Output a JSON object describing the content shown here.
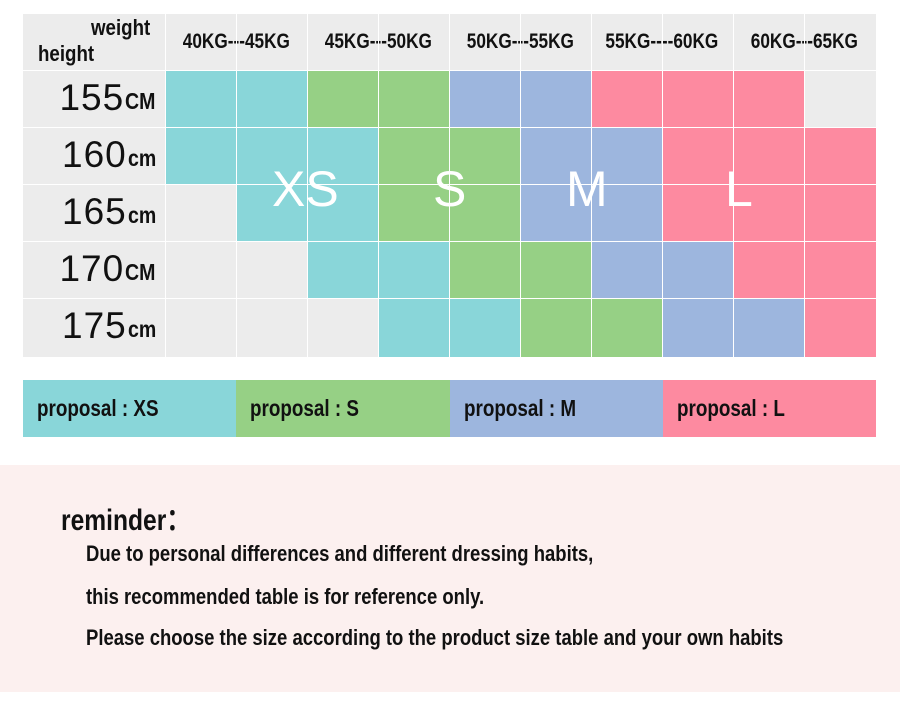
{
  "size_table": {
    "corner_weight": "weight",
    "corner_height": "height",
    "columns": [
      "40KG---45KG",
      "45KG---50KG",
      "50KG---55KG",
      "55KG----60KG",
      "60KG---65KG"
    ],
    "rows": [
      {
        "value": "155",
        "unit": "CM"
      },
      {
        "value": "160",
        "unit": "cm"
      },
      {
        "value": "165",
        "unit": "cm"
      },
      {
        "value": "170",
        "unit": "CM"
      },
      {
        "value": "175",
        "unit": "cm"
      }
    ],
    "size_labels": [
      "XS",
      "S",
      "M",
      "L"
    ],
    "cell_colors": [
      [
        "xs",
        "xs",
        "s",
        "s",
        "m",
        "m",
        "l",
        "l",
        "l",
        "gray"
      ],
      [
        "xs",
        "xs",
        "xs",
        "s",
        "s",
        "m",
        "m",
        "l",
        "l",
        "l"
      ],
      [
        "gray",
        "xs",
        "xs",
        "s",
        "s",
        "m",
        "m",
        "l",
        "l",
        "l"
      ],
      [
        "gray",
        "gray",
        "xs",
        "xs",
        "s",
        "s",
        "m",
        "m",
        "l",
        "l"
      ],
      [
        "gray",
        "gray",
        "gray",
        "xs",
        "xs",
        "s",
        "s",
        "m",
        "m",
        "l"
      ]
    ],
    "colors": {
      "xs": "#89d6d9",
      "s": "#96d085",
      "m": "#9db6de",
      "l": "#fd8aa0",
      "gray": "#ececec"
    }
  },
  "proposals": [
    {
      "label": "proposal : XS",
      "color": "#89d6d9"
    },
    {
      "label": "proposal : S",
      "color": "#96d085"
    },
    {
      "label": "proposal : M",
      "color": "#9db6de"
    },
    {
      "label": "proposal : L",
      "color": "#fd8aa0"
    }
  ],
  "reminder": {
    "title": "reminder：",
    "lines": [
      "Due to personal differences and different dressing habits,",
      "this recommended table is for reference only.",
      "Please choose the size according to the product size table and your own habits"
    ]
  }
}
